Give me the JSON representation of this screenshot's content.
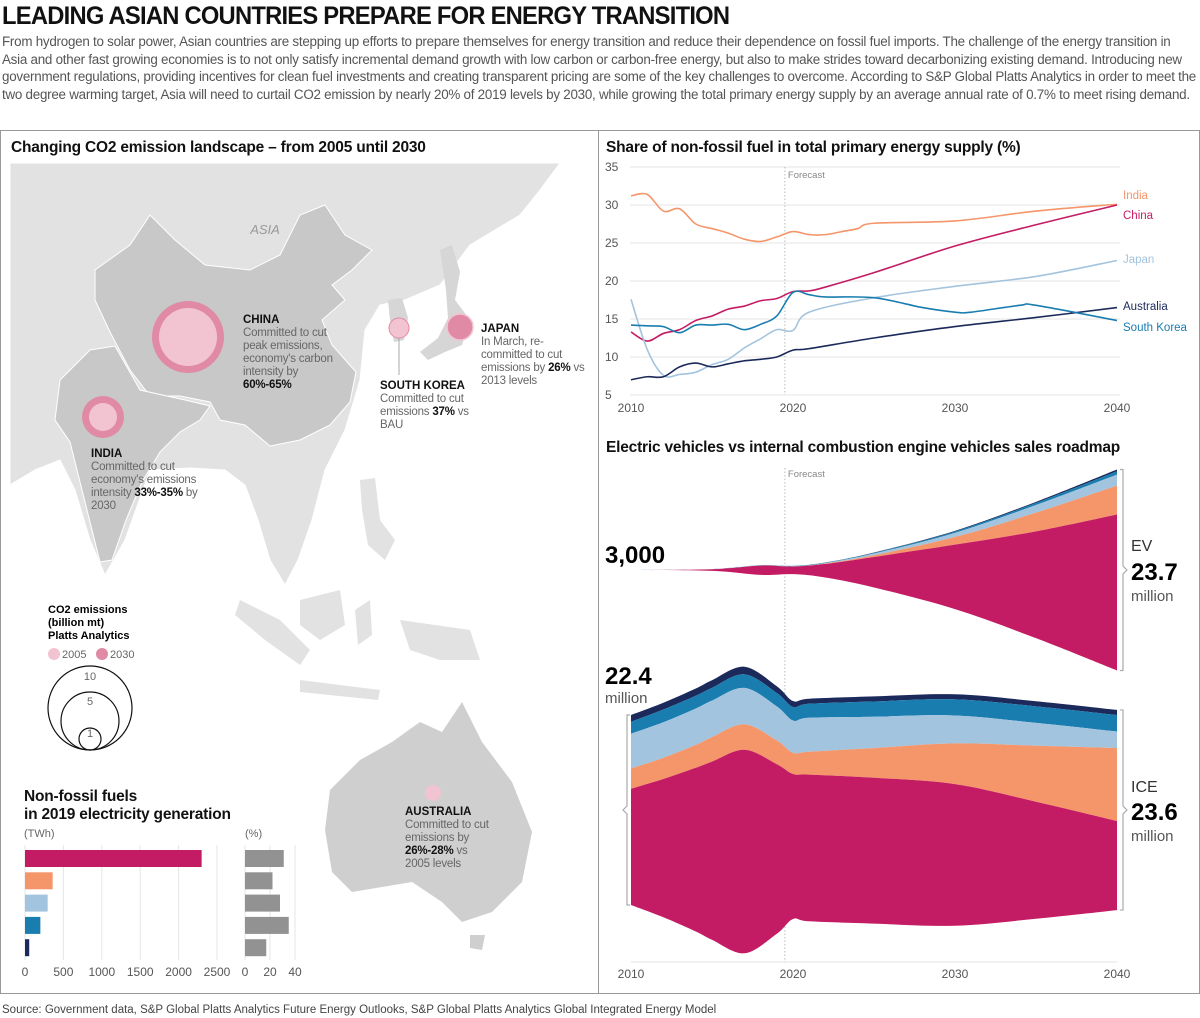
{
  "header": {
    "title": "LEADING ASIAN COUNTRIES PREPARE FOR ENERGY TRANSITION",
    "intro": "From hydrogen to solar power, Asian countries are stepping up efforts to prepare themselves for energy transition and reduce their dependence on fossil fuel imports. The challenge of the energy transition in Asia and other fast growing economies is to not only satisfy incremental demand growth with low carbon or carbon-free energy, but also to make strides toward decarbonizing existing demand. Introducing new government regulations, providing incentives for clean fuel investments and creating transparent pricing are some of the key challenges to overcome. According to S&P Global Platts Analytics in order to meet the two degree warming target, Asia will need to curtail CO2 emission by nearly 20% of 2019 levels by 2030, while growing the total primary energy supply by an average annual rate of 0.7% to meet rising demand."
  },
  "colors": {
    "China": "#c41c64",
    "India": "#f5956a",
    "Japan": "#a3c4de",
    "South Korea": "#1a7db0",
    "Australia": "#1b2a5a",
    "bubble_2005": "#f2c4d2",
    "bubble_2030": "#e08aa6",
    "land": "#e2e2e2",
    "land_highlight": "#c8c8c8",
    "percent_bar": "#929292"
  },
  "map": {
    "title": "Changing CO2 emission landscape – from 2005 until 2030",
    "region_label": "ASIA",
    "countries": [
      {
        "name": "CHINA",
        "text": "Committed to cut peak emissions, economy's carbon intensity by ",
        "bold": "60%-65%",
        "after": ""
      },
      {
        "name": "INDIA",
        "text": "Committed to cut economy's emissions intensity ",
        "bold": "33%-35%",
        "after": " by 2030"
      },
      {
        "name": "SOUTH KOREA",
        "text": "Committed to cut emissions ",
        "bold": "37%",
        "after": " vs BAU"
      },
      {
        "name": "JAPAN",
        "text": "In March, re-committed to cut emissions by ",
        "bold": "26%",
        "after": " vs 2013 levels"
      },
      {
        "name": "AUSTRALIA",
        "text": "Committed to cut emissions by ",
        "bold": "26%-28%",
        "after": " vs 2005 levels"
      }
    ],
    "legend": {
      "title_lines": [
        "CO2 emissions",
        "(billion mt)",
        "Platts Analytics"
      ],
      "items": [
        "2005",
        "2030"
      ],
      "sizes": [
        "10",
        "5",
        "1"
      ]
    }
  },
  "chart_data": [
    {
      "type": "line",
      "title": "Share of non-fossil fuel in total primary energy supply (%)",
      "annotation": "Forecast",
      "forecast_start": 2019.5,
      "xlim": [
        2010,
        2040
      ],
      "ylim": [
        5,
        35
      ],
      "xticks": [
        "2010",
        "2020",
        "2030",
        "2040"
      ],
      "yticks": [
        "5",
        "10",
        "15",
        "20",
        "25",
        "30",
        "35"
      ],
      "grid": true,
      "series": [
        {
          "name": "India",
          "x": [
            2010,
            2011,
            2012,
            2013,
            2014,
            2015,
            2016,
            2017,
            2018,
            2019,
            2020,
            2021,
            2022,
            2023,
            2024,
            2025,
            2030,
            2035,
            2040
          ],
          "values": [
            31.2,
            31.4,
            29.2,
            29.5,
            27.5,
            26.9,
            26.3,
            25.5,
            25.2,
            25.8,
            26.5,
            26.1,
            26.1,
            26.5,
            26.9,
            27.6,
            27.9,
            29.2,
            30.1
          ]
        },
        {
          "name": "China",
          "x": [
            2010,
            2011,
            2012,
            2013,
            2014,
            2015,
            2016,
            2017,
            2018,
            2019,
            2020,
            2021,
            2022,
            2025,
            2030,
            2035,
            2040
          ],
          "values": [
            13.3,
            12.1,
            13.1,
            13.6,
            14.8,
            15.4,
            16.3,
            16.7,
            17.4,
            17.7,
            18.6,
            18.7,
            19.2,
            21.1,
            24.6,
            27.4,
            30.0
          ]
        },
        {
          "name": "Japan",
          "x": [
            2010,
            2011,
            2012,
            2013,
            2014,
            2015,
            2016,
            2017,
            2018,
            2019,
            2020,
            2021,
            2025,
            2030,
            2035,
            2040
          ],
          "values": [
            17.6,
            11.0,
            7.6,
            7.7,
            8.0,
            9.0,
            9.7,
            11.2,
            12.4,
            13.6,
            13.5,
            15.9,
            17.8,
            19.3,
            20.6,
            22.7
          ]
        },
        {
          "name": "Australia",
          "x": [
            2010,
            2011,
            2012,
            2013,
            2014,
            2015,
            2016,
            2017,
            2018,
            2019,
            2020,
            2021,
            2025,
            2030,
            2035,
            2040
          ],
          "values": [
            7.0,
            7.4,
            7.4,
            8.7,
            9.2,
            8.7,
            9.1,
            9.5,
            9.7,
            10.0,
            10.9,
            11.1,
            12.5,
            14.0,
            15.2,
            16.5
          ]
        },
        {
          "name": "South Korea",
          "x": [
            2010,
            2011,
            2012,
            2013,
            2014,
            2015,
            2016,
            2017,
            2018,
            2019,
            2020,
            2021,
            2022,
            2025,
            2028,
            2030,
            2031,
            2034,
            2035,
            2040
          ],
          "values": [
            14.2,
            14.1,
            14.0,
            13.2,
            14.2,
            14.2,
            14.3,
            13.6,
            14.3,
            15.4,
            18.5,
            18.2,
            17.9,
            17.8,
            16.5,
            15.9,
            15.9,
            16.8,
            16.8,
            14.8
          ]
        }
      ]
    },
    {
      "type": "area",
      "title": "Electric vehicles vs internal combustion engine vehicles sales roadmap",
      "annotation": "Forecast",
      "xticks": [
        "2010",
        "2020",
        "2030",
        "2040"
      ],
      "unit": "million",
      "ev": {
        "label": "EV",
        "start_label": "3,000",
        "end_value": "23.7",
        "end_unit": "million",
        "x": [
          2010,
          2015,
          2018,
          2020,
          2022,
          2025,
          2030,
          2035,
          2040
        ],
        "series": [
          {
            "name": "Australia",
            "values": [
              0,
              0,
              0.01,
              0.01,
              0.02,
              0.04,
              0.08,
              0.13,
              0.2
            ]
          },
          {
            "name": "South Korea",
            "values": [
              0,
              0,
              0.02,
              0.04,
              0.05,
              0.08,
              0.15,
              0.25,
              0.4
            ]
          },
          {
            "name": "Japan",
            "values": [
              0,
              0.01,
              0.03,
              0.03,
              0.05,
              0.2,
              0.5,
              0.9,
              1.3
            ]
          },
          {
            "name": "India",
            "values": [
              0,
              0,
              0,
              0,
              0.05,
              0.2,
              0.9,
              2.2,
              3.4
            ]
          },
          {
            "name": "China",
            "values": [
              0.003,
              0.2,
              1.1,
              0.9,
              1.6,
              3.6,
              7.6,
              12.6,
              18.4
            ]
          }
        ]
      },
      "ice": {
        "label": "ICE",
        "start_value": "22.4",
        "start_unit": "million",
        "end_value": "23.6",
        "end_unit": "million",
        "x": [
          2010,
          2012,
          2014,
          2015,
          2017,
          2019,
          2020,
          2021,
          2025,
          2030,
          2035,
          2040
        ],
        "series": [
          {
            "name": "Australia",
            "values": [
              0.8,
              0.8,
              0.85,
              0.9,
              0.9,
              0.8,
              0.7,
              0.6,
              0.6,
              0.6,
              0.6,
              0.6
            ]
          },
          {
            "name": "South Korea",
            "values": [
              1.4,
              1.5,
              1.5,
              1.5,
              1.6,
              1.6,
              1.6,
              1.65,
              1.8,
              1.9,
              1.95,
              1.95
            ]
          },
          {
            "name": "Japan",
            "values": [
              4.1,
              4.2,
              4.3,
              4.3,
              4.3,
              4.0,
              3.8,
              4.0,
              3.7,
              3.3,
              2.7,
              1.95
            ]
          },
          {
            "name": "India",
            "values": [
              2.4,
              2.5,
              2.7,
              2.9,
              3.0,
              2.8,
              2.5,
              2.7,
              3.5,
              4.8,
              6.6,
              8.6
            ]
          },
          {
            "name": "China",
            "values": [
              13.7,
              16.3,
              19.3,
              21.0,
              24.0,
              20.0,
              17.1,
              17.3,
              17.2,
              16.7,
              13.8,
              10.5
            ]
          }
        ]
      }
    },
    {
      "type": "bar",
      "title_lines": [
        "Non-fossil fuels",
        "in 2019 electricity generation"
      ],
      "categories": [
        "China",
        "India",
        "Japan",
        "South Korea",
        "Australia"
      ],
      "twh": {
        "unit": "(TWh)",
        "values": [
          2300,
          360,
          295,
          200,
          55
        ],
        "xlim": [
          0,
          2500
        ],
        "xticks": [
          "0",
          "500",
          "1000",
          "1500",
          "2000",
          "2500"
        ]
      },
      "percent": {
        "unit": "(%)",
        "values": [
          31,
          22,
          28,
          35,
          17
        ],
        "xlim": [
          0,
          40
        ],
        "xticks": [
          "0",
          "20",
          "40"
        ]
      }
    }
  ],
  "source": "Source: Government data, S&P Global Platts Analytics Future Energy Outlooks, S&P Global Platts Analytics Global Integrated Energy Model"
}
